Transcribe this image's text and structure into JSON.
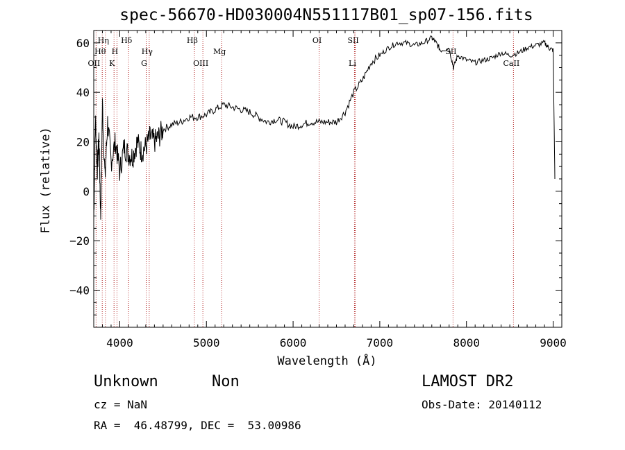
{
  "chart_data": {
    "type": "line",
    "title": "spec-56670-HD030004N551117B01_sp07-156.fits",
    "xlabel": "Wavelength (Å)",
    "ylabel": "Flux (relative)",
    "xlim": [
      3700,
      9100
    ],
    "ylim": [
      -55,
      65
    ],
    "x_ticks": [
      4000,
      5000,
      6000,
      7000,
      8000,
      9000
    ],
    "x_tick_labels": [
      "4000",
      "5000",
      "6000",
      "7000",
      "8000",
      "9000"
    ],
    "y_ticks": [
      -40,
      -20,
      0,
      20,
      40,
      60
    ],
    "y_tick_labels": [
      "−40",
      "−20",
      "0",
      "20",
      "40",
      "60"
    ],
    "grid": false,
    "line_color": "#000000",
    "marker_line_color": "#b22222",
    "series": [
      {
        "x": [
          3700,
          3720,
          3740,
          3760,
          3780,
          3800,
          3830,
          3860,
          3900,
          3950,
          4000,
          4050,
          4100,
          4150,
          4200,
          4250,
          4300,
          4350,
          4400,
          4450,
          4500,
          4600,
          4700,
          4800,
          4900,
          5000,
          5100,
          5200,
          5300,
          5400,
          5500,
          5600,
          5700,
          5800,
          5900,
          6000,
          6100,
          6200,
          6300,
          6400,
          6500,
          6600,
          6700,
          6800,
          6900,
          7000,
          7100,
          7200,
          7300,
          7400,
          7500,
          7600,
          7650,
          7700,
          7800,
          7850,
          7900,
          8000,
          8100,
          8200,
          8300,
          8400,
          8500,
          8600,
          8700,
          8800,
          8900,
          8950,
          9000,
          9020
        ],
        "y": [
          -12,
          30,
          8,
          22,
          -10,
          35,
          5,
          28,
          12,
          20,
          8,
          18,
          15,
          14,
          20,
          16,
          18,
          22,
          20,
          22,
          25,
          27,
          28,
          30,
          30,
          31,
          33,
          35,
          34,
          33,
          32,
          30,
          28,
          29,
          28,
          26,
          27,
          28,
          28,
          28,
          28,
          32,
          40,
          45,
          52,
          55,
          58,
          60,
          60,
          59,
          60,
          62,
          60,
          57,
          58,
          50,
          55,
          53,
          52,
          53,
          54,
          56,
          55,
          56,
          58,
          59,
          60,
          58,
          57,
          5
        ]
      }
    ],
    "line_markers": [
      {
        "name": "OII",
        "x": 3727,
        "row": 3
      },
      {
        "name": "Hθ",
        "x": 3798,
        "row": 2
      },
      {
        "name": "Hη",
        "x": 3835,
        "row": 1
      },
      {
        "name": "K",
        "x": 3934,
        "row": 3
      },
      {
        "name": "H",
        "x": 3968,
        "row": 2
      },
      {
        "name": "Hδ",
        "x": 4102,
        "row": 1
      },
      {
        "name": "G",
        "x": 4305,
        "row": 3
      },
      {
        "name": "Hγ",
        "x": 4340,
        "row": 2
      },
      {
        "name": "Hβ",
        "x": 4861,
        "row": 1
      },
      {
        "name": "OIII",
        "x": 4959,
        "row": 3
      },
      {
        "name": "Mg",
        "x": 5175,
        "row": 2
      },
      {
        "name": "OI",
        "x": 6300,
        "row": 1
      },
      {
        "name": "SII",
        "x": 6717,
        "row": 1
      },
      {
        "name": "Li",
        "x": 6708,
        "row": 3
      },
      {
        "name": "SII",
        "x": 7845,
        "row": 2
      },
      {
        "name": "CaII",
        "x": 8542,
        "row": 3
      }
    ]
  },
  "info": {
    "class_label": "Unknown",
    "subclass_label": "Non",
    "survey": "LAMOST DR2",
    "cz": "cz = NaN",
    "obs_date": "Obs-Date: 20140112",
    "coords": "RA =  46.48799, DEC =  53.00986"
  }
}
